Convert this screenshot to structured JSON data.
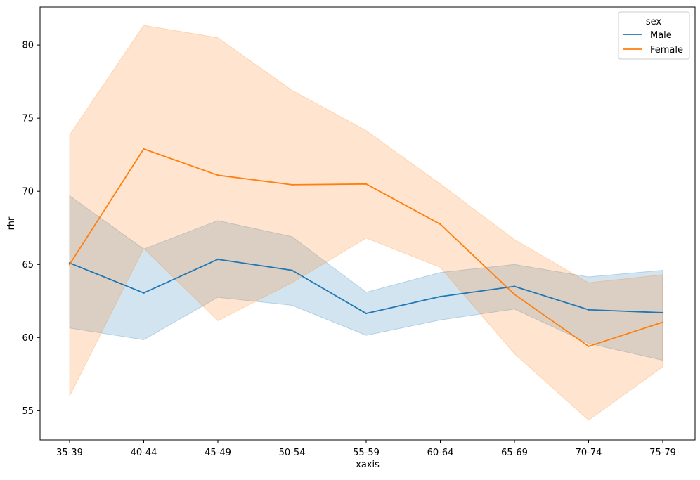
{
  "chart_data": {
    "type": "line",
    "title": "",
    "xlabel": "xaxis",
    "ylabel": "rhr",
    "categories": [
      "35-39",
      "40-44",
      "45-49",
      "50-54",
      "55-59",
      "60-64",
      "65-69",
      "70-74",
      "75-79"
    ],
    "ylim": [
      53.0,
      82.6
    ],
    "yticks": [
      55,
      60,
      65,
      70,
      75,
      80
    ],
    "grid": false,
    "legend": {
      "title": "sex",
      "position": "top-right"
    },
    "series": [
      {
        "name": "Male",
        "color": "#1f77b4",
        "values": [
          65.1,
          63.05,
          65.35,
          64.6,
          61.65,
          62.8,
          63.5,
          61.9,
          61.7
        ],
        "ci_upper": [
          69.7,
          66.05,
          68.0,
          66.9,
          63.1,
          64.45,
          65.0,
          64.15,
          64.6
        ],
        "ci_lower": [
          60.65,
          59.85,
          62.75,
          62.2,
          60.15,
          61.2,
          61.95,
          59.6,
          58.45
        ]
      },
      {
        "name": "Female",
        "color": "#ff7f0e",
        "values": [
          65.0,
          72.9,
          71.1,
          70.45,
          70.5,
          67.75,
          62.95,
          59.4,
          61.05
        ],
        "ci_upper": [
          73.85,
          81.35,
          80.5,
          76.9,
          74.15,
          70.5,
          66.7,
          63.75,
          64.3
        ],
        "ci_lower": [
          56.0,
          66.1,
          61.15,
          63.75,
          66.8,
          64.8,
          58.9,
          54.35,
          58.0
        ]
      }
    ]
  }
}
